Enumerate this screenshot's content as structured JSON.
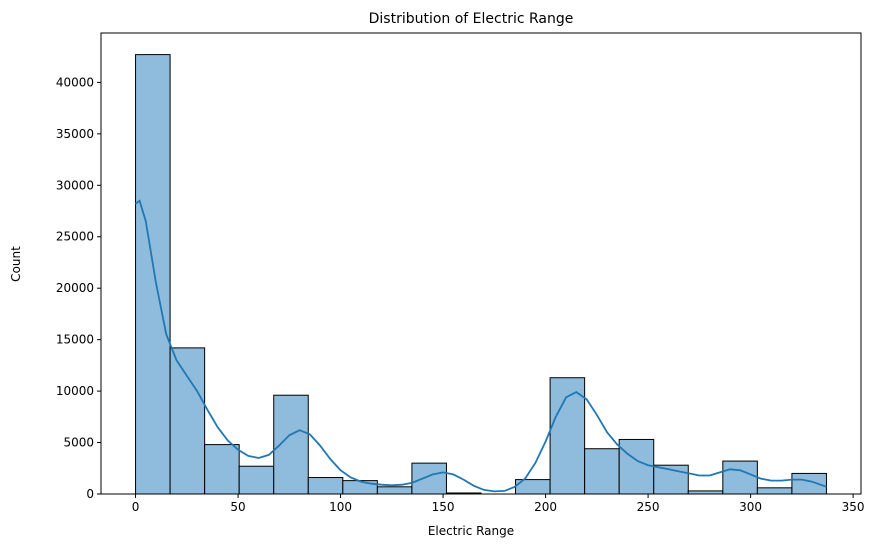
{
  "chart_data": {
    "type": "bar",
    "title": "Distribution of Electric Range",
    "xlabel": "Electric Range",
    "ylabel": "Count",
    "xlim": [
      -16.85,
      353.85
    ],
    "ylim": [
      0,
      44800
    ],
    "xticks": [
      0,
      50,
      100,
      150,
      200,
      250,
      300,
      350
    ],
    "yticks": [
      0,
      5000,
      10000,
      15000,
      20000,
      25000,
      30000,
      35000,
      40000
    ],
    "grid": false,
    "bins": [
      {
        "x0": 0.0,
        "x1": 16.85,
        "count": 42700
      },
      {
        "x0": 16.85,
        "x1": 33.7,
        "count": 14200
      },
      {
        "x0": 33.7,
        "x1": 50.55,
        "count": 4800
      },
      {
        "x0": 50.55,
        "x1": 67.4,
        "count": 2700
      },
      {
        "x0": 67.4,
        "x1": 84.25,
        "count": 9600
      },
      {
        "x0": 84.25,
        "x1": 101.1,
        "count": 1600
      },
      {
        "x0": 101.1,
        "x1": 117.95,
        "count": 1300
      },
      {
        "x0": 117.95,
        "x1": 134.8,
        "count": 700
      },
      {
        "x0": 134.8,
        "x1": 151.65,
        "count": 3000
      },
      {
        "x0": 151.65,
        "x1": 168.5,
        "count": 100
      },
      {
        "x0": 168.5,
        "x1": 185.35,
        "count": 0
      },
      {
        "x0": 185.35,
        "x1": 202.2,
        "count": 1400
      },
      {
        "x0": 202.2,
        "x1": 219.05,
        "count": 11300
      },
      {
        "x0": 219.05,
        "x1": 235.9,
        "count": 4400
      },
      {
        "x0": 235.9,
        "x1": 252.75,
        "count": 5300
      },
      {
        "x0": 252.75,
        "x1": 269.6,
        "count": 2800
      },
      {
        "x0": 269.6,
        "x1": 286.45,
        "count": 300
      },
      {
        "x0": 286.45,
        "x1": 303.3,
        "count": 3200
      },
      {
        "x0": 303.3,
        "x1": 320.15,
        "count": 600
      },
      {
        "x0": 320.15,
        "x1": 337.0,
        "count": 2000
      }
    ],
    "kde": [
      [
        0,
        28200
      ],
      [
        2,
        28500
      ],
      [
        5,
        26500
      ],
      [
        10,
        20500
      ],
      [
        15,
        15500
      ],
      [
        20,
        13000
      ],
      [
        25,
        11500
      ],
      [
        30,
        10000
      ],
      [
        35,
        8200
      ],
      [
        40,
        6500
      ],
      [
        45,
        5200
      ],
      [
        50,
        4300
      ],
      [
        55,
        3700
      ],
      [
        60,
        3500
      ],
      [
        65,
        3800
      ],
      [
        70,
        4700
      ],
      [
        75,
        5700
      ],
      [
        80,
        6200
      ],
      [
        85,
        5800
      ],
      [
        90,
        4700
      ],
      [
        95,
        3400
      ],
      [
        100,
        2300
      ],
      [
        105,
        1600
      ],
      [
        110,
        1200
      ],
      [
        115,
        1000
      ],
      [
        120,
        900
      ],
      [
        125,
        850
      ],
      [
        130,
        900
      ],
      [
        135,
        1100
      ],
      [
        140,
        1500
      ],
      [
        145,
        1900
      ],
      [
        150,
        2100
      ],
      [
        155,
        1900
      ],
      [
        160,
        1400
      ],
      [
        165,
        800
      ],
      [
        170,
        400
      ],
      [
        175,
        250
      ],
      [
        180,
        300
      ],
      [
        185,
        700
      ],
      [
        190,
        1500
      ],
      [
        195,
        3000
      ],
      [
        200,
        5100
      ],
      [
        205,
        7500
      ],
      [
        210,
        9400
      ],
      [
        215,
        9900
      ],
      [
        220,
        9200
      ],
      [
        225,
        7700
      ],
      [
        230,
        6000
      ],
      [
        235,
        4800
      ],
      [
        240,
        3900
      ],
      [
        245,
        3200
      ],
      [
        250,
        2800
      ],
      [
        255,
        2600
      ],
      [
        260,
        2400
      ],
      [
        265,
        2200
      ],
      [
        270,
        2000
      ],
      [
        275,
        1800
      ],
      [
        280,
        1800
      ],
      [
        285,
        2100
      ],
      [
        290,
        2400
      ],
      [
        295,
        2300
      ],
      [
        300,
        1900
      ],
      [
        305,
        1500
      ],
      [
        310,
        1300
      ],
      [
        315,
        1300
      ],
      [
        320,
        1400
      ],
      [
        325,
        1400
      ],
      [
        330,
        1200
      ],
      [
        337,
        700
      ]
    ],
    "colors": {
      "bar_fill": "#8fbcdc",
      "bar_edge": "#000000",
      "kde_line": "#1f77b4"
    }
  }
}
